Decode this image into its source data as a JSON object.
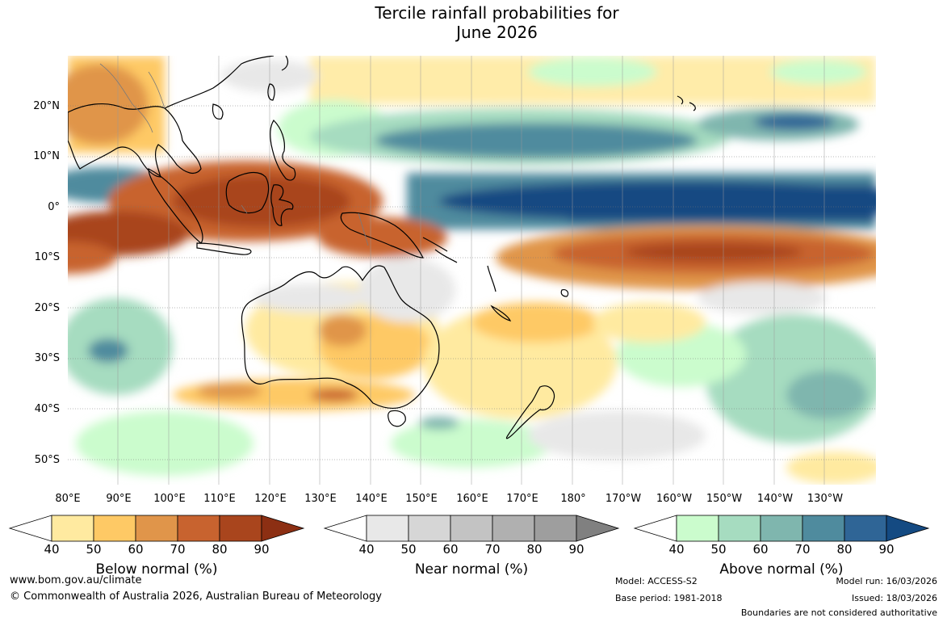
{
  "title_line1": "Tercile rainfall probabilities for",
  "title_line2": "June 2026",
  "map": {
    "lat_labels": [
      "20°N",
      "10°N",
      "0°",
      "10°S",
      "20°S",
      "30°S",
      "40°S",
      "50°S"
    ],
    "lon_labels": [
      "80°E",
      "90°E",
      "100°E",
      "110°E",
      "120°E",
      "130°E",
      "140°E",
      "150°E",
      "160°E",
      "170°E",
      "180°",
      "170°W",
      "160°W",
      "150°W",
      "140°W",
      "130°W"
    ]
  },
  "colorbars": {
    "below": {
      "title": "Below normal (%)",
      "ticks": [
        "40",
        "50",
        "60",
        "70",
        "80",
        "90"
      ],
      "colors": [
        "#ffeaa0",
        "#fec965",
        "#e0954a",
        "#c8632f",
        "#a9451d",
        "#8c2f13"
      ]
    },
    "near": {
      "title": "Near normal (%)",
      "ticks": [
        "40",
        "50",
        "60",
        "70",
        "80",
        "90"
      ],
      "colors": [
        "#e8e8e8",
        "#d6d6d6",
        "#c3c3c3",
        "#b0b0b0",
        "#9e9e9e",
        "#808080"
      ]
    },
    "above": {
      "title": "Above normal (%)",
      "ticks": [
        "40",
        "50",
        "60",
        "70",
        "80",
        "90"
      ],
      "colors": [
        "#cbfccd",
        "#a6dcc0",
        "#7fb6ae",
        "#4f8b9e",
        "#2f6596",
        "#144a82"
      ]
    }
  },
  "footer": {
    "url": "www.bom.gov.au/climate",
    "copyright": "© Commonwealth of Australia 2026, Australian Bureau of Meteorology",
    "model": "Model: ACCESS-S2",
    "base_period": "Base period: 1981-2018",
    "model_run": "Model run: 16/03/2026",
    "issued": "Issued: 18/03/2026",
    "disclaimer": "Boundaries are not considered authoritative"
  }
}
